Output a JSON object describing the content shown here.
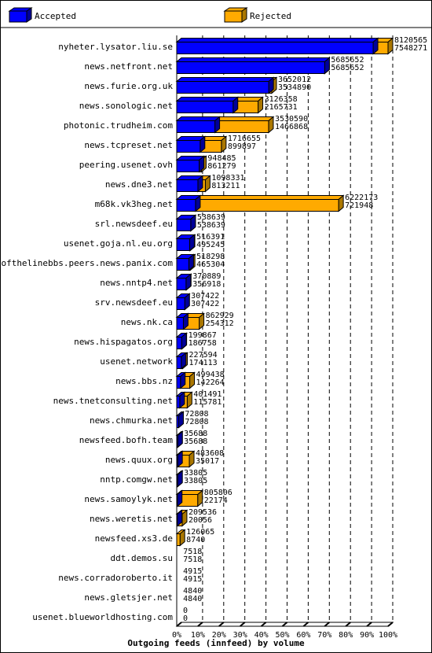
{
  "legend": [
    {
      "label": "Accepted",
      "color": "#0000ff",
      "shade": "#000099"
    },
    {
      "label": "Rejected",
      "color": "#ffaa00",
      "shade": "#aa7700"
    }
  ],
  "chart_data": {
    "type": "bar",
    "orientation": "horizontal",
    "stacking": "overlaid-3d",
    "title": "Outgoing feeds (innfeed) by volume",
    "x_ticks": [
      "0%",
      "10%",
      "20%",
      "30%",
      "40%",
      "50%",
      "60%",
      "70%",
      "80%",
      "90%",
      "100%"
    ],
    "x_range_percent": [
      0,
      100
    ],
    "max_total": 8120565,
    "categories": [
      "nyheter.lysator.liu.se",
      "news.netfront.net",
      "news.furie.org.uk",
      "news.sonologic.net",
      "photonic.trudheim.com",
      "news.tcpreset.net",
      "peering.usenet.ovh",
      "news.dne3.net",
      "m68k.vk3heg.net",
      "srl.newsdeef.eu",
      "usenet.goja.nl.eu.org",
      "endofthelinebbs.peers.news.panix.com",
      "news.nntp4.net",
      "srv.newsdeef.eu",
      "news.nk.ca",
      "news.hispagatos.org",
      "usenet.network",
      "news.bbs.nz",
      "news.tnetconsulting.net",
      "news.chmurka.net",
      "newsfeed.bofh.team",
      "news.quux.org",
      "nntp.comgw.net",
      "news.samoylyk.net",
      "news.weretis.net",
      "newsfeed.xs3.de",
      "ddt.demos.su",
      "news.corradoroberto.it",
      "news.gletsjer.net",
      "usenet.blueworldhosting.com"
    ],
    "series": [
      {
        "name": "Total",
        "values": [
          8120565,
          5685652,
          3652012,
          3126358,
          3530590,
          1716655,
          948485,
          1098331,
          6222173,
          538639,
          516391,
          518298,
          370889,
          307422,
          862929,
          199867,
          227594,
          499438,
          401491,
          72808,
          35688,
          483608,
          33805,
          805806,
          209536,
          126065,
          7518,
          4915,
          4840,
          0
        ]
      },
      {
        "name": "Accepted",
        "values": [
          7548271,
          5685652,
          3534890,
          2165731,
          1466868,
          899897,
          861279,
          813211,
          721948,
          538639,
          495245,
          465304,
          356918,
          307422,
          254312,
          186758,
          174113,
          142264,
          115781,
          72808,
          35688,
          35017,
          33805,
          22174,
          20056,
          8740,
          7518,
          4915,
          4840,
          0
        ]
      }
    ]
  }
}
